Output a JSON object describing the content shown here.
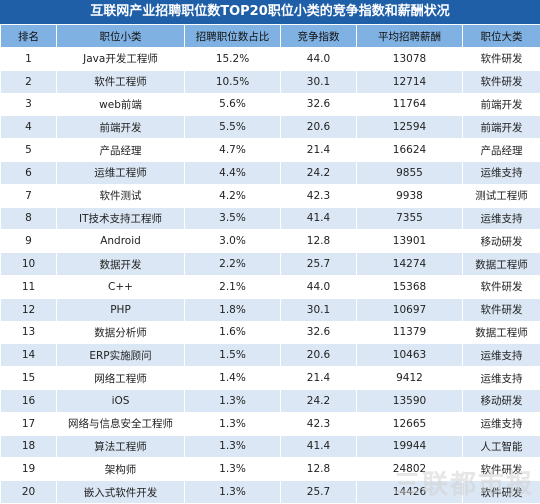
{
  "title": "互联网产业招聘职位数TOP20职位小类的竞争指数和薪酬状况",
  "headers": [
    "排名",
    "职位小类",
    "招聘职位数占比",
    "竞争指数",
    "平均招聘薪酬",
    "职位大类"
  ],
  "rows": [
    [
      "1",
      "Java开发工程师",
      "15.2%",
      "44.0",
      "13078",
      "软件研发"
    ],
    [
      "2",
      "软件工程师",
      "10.5%",
      "30.1",
      "12714",
      "软件研发"
    ],
    [
      "3",
      "web前端",
      "5.6%",
      "32.6",
      "11764",
      "前端开发"
    ],
    [
      "4",
      "前端开发",
      "5.5%",
      "20.6",
      "12594",
      "前端开发"
    ],
    [
      "5",
      "产品经理",
      "4.7%",
      "21.4",
      "16624",
      "产品经理"
    ],
    [
      "6",
      "运维工程师",
      "4.4%",
      "24.2",
      "9855",
      "运维支持"
    ],
    [
      "7",
      "软件测试",
      "4.2%",
      "42.3",
      "9938",
      "测试工程师"
    ],
    [
      "8",
      "IT技术支持工程师",
      "3.5%",
      "41.4",
      "7355",
      "运维支持"
    ],
    [
      "9",
      "Android",
      "3.0%",
      "12.8",
      "13901",
      "移动研发"
    ],
    [
      "10",
      "数据开发",
      "2.2%",
      "25.7",
      "14274",
      "数据工程师"
    ],
    [
      "11",
      "C++",
      "2.1%",
      "44.0",
      "15368",
      "软件研发"
    ],
    [
      "12",
      "PHP",
      "1.8%",
      "30.1",
      "10697",
      "软件研发"
    ],
    [
      "13",
      "数据分析师",
      "1.6%",
      "32.6",
      "11379",
      "数据工程师"
    ],
    [
      "14",
      "ERP实施顾问",
      "1.5%",
      "20.6",
      "10463",
      "运维支持"
    ],
    [
      "15",
      "网络工程师",
      "1.4%",
      "21.4",
      "9412",
      "运维支持"
    ],
    [
      "16",
      "iOS",
      "1.3%",
      "24.2",
      "13590",
      "移动研发"
    ],
    [
      "17",
      "网络与信息安全工程师",
      "1.3%",
      "42.3",
      "12665",
      "运维支持"
    ],
    [
      "18",
      "算法工程师",
      "1.3%",
      "41.4",
      "19944",
      "人工智能"
    ],
    [
      "19",
      "架构师",
      "1.3%",
      "12.8",
      "24802",
      "软件研发"
    ],
    [
      "20",
      "嵌入式软件开发",
      "1.3%",
      "25.7",
      "14426",
      "软件研发"
    ]
  ],
  "watermark": "三联都市报"
}
